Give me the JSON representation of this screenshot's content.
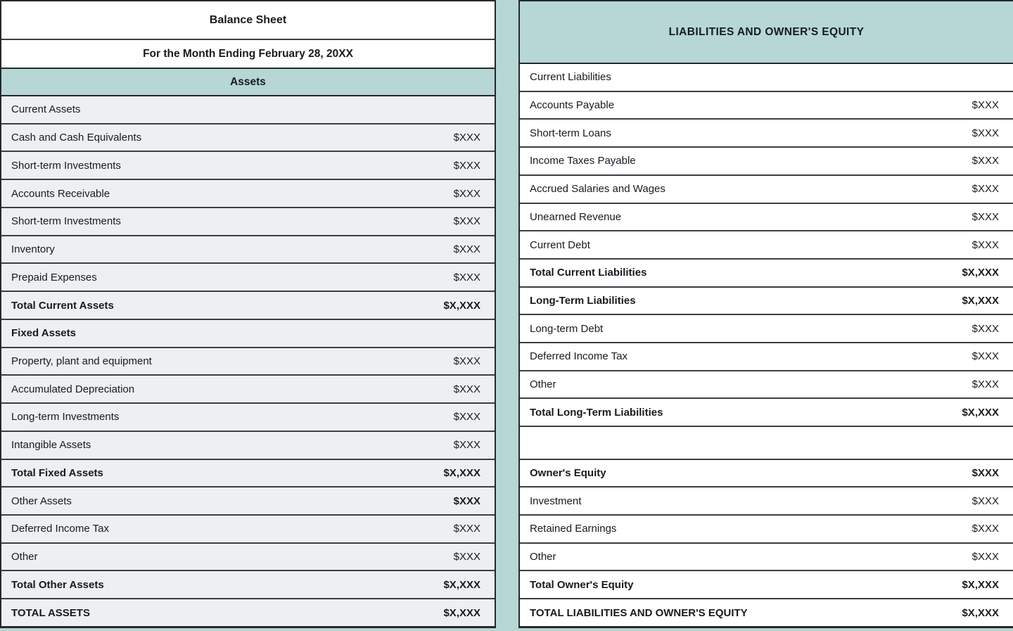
{
  "document": {
    "title": "Balance Sheet",
    "subtitle": "For the Month Ending February 28, 20XX"
  },
  "assets_section": {
    "header": "Assets",
    "rows": [
      {
        "label": "Current Assets",
        "value": "",
        "bold": false
      },
      {
        "label": "Cash and Cash Equivalents",
        "value": "$XXX",
        "bold": false
      },
      {
        "label": "Short-term Investments",
        "value": "$XXX",
        "bold": false
      },
      {
        "label": "Accounts Receivable",
        "value": "$XXX",
        "bold": false
      },
      {
        "label": "Short-term Investments",
        "value": "$XXX",
        "bold": false
      },
      {
        "label": "Inventory",
        "value": "$XXX",
        "bold": false
      },
      {
        "label": "Prepaid Expenses",
        "value": "$XXX",
        "bold": false
      },
      {
        "label": "Total Current Assets",
        "value": "$X,XXX",
        "bold": true
      },
      {
        "label": "Fixed Assets",
        "value": "",
        "bold": true
      },
      {
        "label": "Property, plant and equipment",
        "value": "$XXX",
        "bold": false
      },
      {
        "label": "Accumulated Depreciation",
        "value": "$XXX",
        "bold": false
      },
      {
        "label": "Long-term Investments",
        "value": "$XXX",
        "bold": false
      },
      {
        "label": "Intangible Assets",
        "value": "$XXX",
        "bold": false
      },
      {
        "label": "Total Fixed Assets",
        "value": "$X,XXX",
        "bold": true
      },
      {
        "label": "Other Assets",
        "value": "$XXX",
        "bold": false,
        "value_bold": true
      },
      {
        "label": "Deferred Income Tax",
        "value": "$XXX",
        "bold": false
      },
      {
        "label": "Other",
        "value": "$XXX",
        "bold": false
      },
      {
        "label": "Total Other Assets",
        "value": "$X,XXX",
        "bold": true
      },
      {
        "label": "TOTAL ASSETS",
        "value": "$X,XXX",
        "bold": true
      }
    ]
  },
  "liabilities_section": {
    "header": "LIABILITIES AND OWNER'S EQUITY",
    "rows": [
      {
        "label": "Current Liabilities",
        "value": "",
        "bold": false
      },
      {
        "label": "Accounts Payable",
        "value": "$XXX",
        "bold": false
      },
      {
        "label": "Short-term Loans",
        "value": "$XXX",
        "bold": false
      },
      {
        "label": "Income Taxes Payable",
        "value": "$XXX",
        "bold": false
      },
      {
        "label": "Accrued Salaries and Wages",
        "value": "$XXX",
        "bold": false
      },
      {
        "label": "Unearned Revenue",
        "value": "$XXX",
        "bold": false
      },
      {
        "label": "Current Debt",
        "value": "$XXX",
        "bold": false
      },
      {
        "label": "Total Current Liabilities",
        "value": "$X,XXX",
        "bold": true
      },
      {
        "label": "Long-Term Liabilities",
        "value": "$X,XXX",
        "bold": true
      },
      {
        "label": "Long-term Debt",
        "value": "$XXX",
        "bold": false
      },
      {
        "label": "Deferred Income Tax",
        "value": "$XXX",
        "bold": false
      },
      {
        "label": "Other",
        "value": "$XXX",
        "bold": false
      },
      {
        "label": "Total Long-Term Liabilities",
        "value": "$X,XXX",
        "bold": true
      },
      {
        "label": "",
        "value": "",
        "bold": false,
        "spacer": true
      },
      {
        "label": "Owner's Equity",
        "value": "$XXX",
        "bold": true
      },
      {
        "label": "Investment",
        "value": "$XXX",
        "bold": false
      },
      {
        "label": "Retained Earnings",
        "value": "$XXX",
        "bold": false
      },
      {
        "label": "Other",
        "value": "$XXX",
        "bold": false
      },
      {
        "label": "Total Owner's Equity",
        "value": "$X,XXX",
        "bold": true
      },
      {
        "label": "TOTAL LIABILITIES AND OWNER'S EQUITY",
        "value": "$X,XXX",
        "bold": true
      }
    ]
  },
  "colors": {
    "header_teal": "#b6d7d4",
    "row_gray": "#edeff1",
    "row_white": "#ffffff",
    "border_dark": "#24292e",
    "row_border": "#3a3f45",
    "text": "#171b1f"
  }
}
